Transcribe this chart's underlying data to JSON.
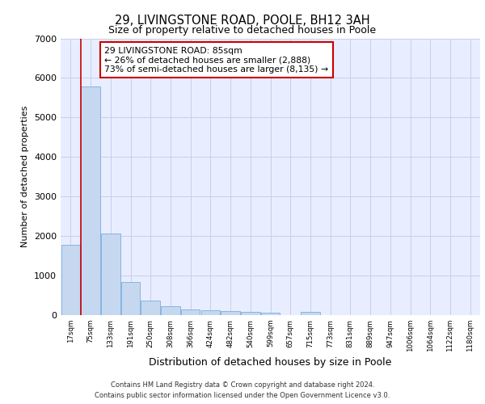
{
  "title_line1": "29, LIVINGSTONE ROAD, POOLE, BH12 3AH",
  "title_line2": "Size of property relative to detached houses in Poole",
  "xlabel": "Distribution of detached houses by size in Poole",
  "ylabel": "Number of detached properties",
  "bar_color": "#c5d8f0",
  "bar_edge_color": "#7aade0",
  "background_color": "#e8eeff",
  "grid_color": "#c8d0e8",
  "vline_color": "#cc0000",
  "annotation_text": "29 LIVINGSTONE ROAD: 85sqm\n← 26% of detached houses are smaller (2,888)\n73% of semi-detached houses are larger (8,135) →",
  "annotation_box_color": "#ffffff",
  "annotation_box_edge": "#cc0000",
  "categories": [
    "17sqm",
    "75sqm",
    "133sqm",
    "191sqm",
    "250sqm",
    "308sqm",
    "366sqm",
    "424sqm",
    "482sqm",
    "540sqm",
    "599sqm",
    "657sqm",
    "715sqm",
    "773sqm",
    "831sqm",
    "889sqm",
    "947sqm",
    "1006sqm",
    "1064sqm",
    "1122sqm",
    "1180sqm"
  ],
  "values": [
    1780,
    5780,
    2060,
    830,
    370,
    230,
    135,
    120,
    110,
    80,
    70,
    0,
    75,
    0,
    0,
    0,
    0,
    0,
    0,
    0,
    0
  ],
  "ylim": [
    0,
    7000
  ],
  "yticks": [
    0,
    1000,
    2000,
    3000,
    4000,
    5000,
    6000,
    7000
  ],
  "vline_index": 1,
  "footer_line1": "Contains HM Land Registry data © Crown copyright and database right 2024.",
  "footer_line2": "Contains public sector information licensed under the Open Government Licence v3.0."
}
